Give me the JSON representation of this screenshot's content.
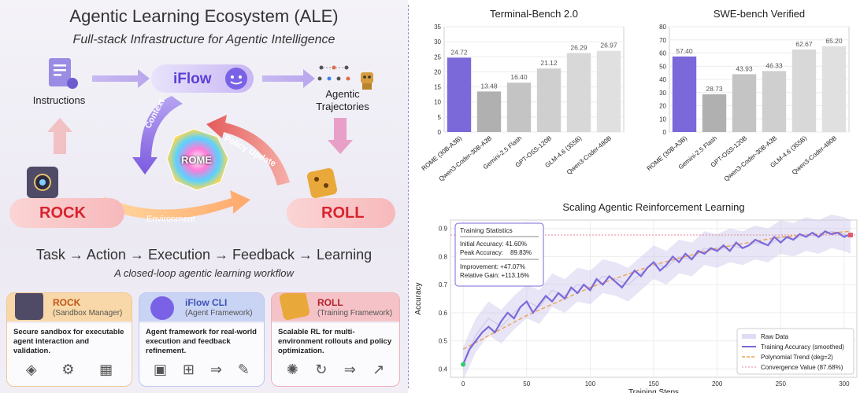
{
  "ale": {
    "title": "Agentic Learning Ecosystem (ALE)",
    "subtitle": "Full-stack Infrastructure for Agentic Intelligence",
    "instructions": "Instructions",
    "iflow": "iFlow",
    "agentic_trajectories": "Agentic\nTrajectories",
    "context": "Context",
    "policy_update": "Policy Update",
    "rome": "ROME",
    "rock": "ROCK",
    "roll": "ROLL",
    "environment": "Environment",
    "workflow": "Task → Action → Execution → Feedback → Learning",
    "workflow_caption": "A closed-loop agentic learning workflow",
    "cards": [
      {
        "name": "ROCK",
        "sub": "(Sandbox Manager)",
        "desc": "Secure sandbox for executable agent interaction and validation.",
        "head_color": "#f6c98a",
        "text_color": "#c0571c"
      },
      {
        "name": "iFlow CLI",
        "sub": "(Agent Framework)",
        "desc": "Agent framework for real-world execution and feedback refinement.",
        "head_color": "#b7c5ef",
        "text_color": "#3e52b8"
      },
      {
        "name": "ROLL",
        "sub": "(Training Framework)",
        "desc": "Scalable RL for multi-environment rollouts and policy optimization.",
        "head_color": "#f3b3b9",
        "text_color": "#b2222f"
      }
    ]
  },
  "chart_data": [
    {
      "type": "bar",
      "title": "Terminal-Bench 2.0",
      "categories": [
        "ROME (30B-A3B)",
        "Qwen3-Coder-30B-A3B",
        "Gemini-2.5 Flash",
        "GPT-OSS-120B",
        "GLM-4.6 (355B)",
        "Qwen3-Coder-480B"
      ],
      "values": [
        24.72,
        13.48,
        16.4,
        21.12,
        26.29,
        26.97
      ],
      "labels": [
        "24.72",
        "13.48",
        "16.40",
        "21.12",
        "26.29",
        "26.97"
      ],
      "ylim": [
        0,
        35
      ],
      "yticks": [
        0,
        5,
        10,
        15,
        20,
        25,
        30,
        35
      ],
      "colors": [
        "#7b68d9",
        "#b0b0b0",
        "#c4c4c4",
        "#cfcfcf",
        "#d8d8d8",
        "#e0e0e0"
      ],
      "highlight_label_color": "#7b68d9"
    },
    {
      "type": "bar",
      "title": "SWE-bench Verified",
      "categories": [
        "ROME (30B-A3B)",
        "Gemini-2.5 Flash",
        "GPT-OSS-120B",
        "Qwen3-Coder-30B-A3B",
        "GLM-4.6 (355B)",
        "Qwen3-Coder-480B"
      ],
      "values": [
        57.4,
        28.73,
        43.93,
        46.33,
        62.67,
        65.2
      ],
      "labels": [
        "57.40",
        "28.73",
        "43.93",
        "46.33",
        "62.67",
        "65.20"
      ],
      "ylim": [
        0,
        80
      ],
      "yticks": [
        0,
        10,
        20,
        30,
        40,
        50,
        60,
        70,
        80
      ],
      "colors": [
        "#7b68d9",
        "#b0b0b0",
        "#c4c4c4",
        "#cfcfcf",
        "#d8d8d8",
        "#e0e0e0"
      ],
      "highlight_label_color": "#7b68d9"
    },
    {
      "type": "line",
      "title": "Scaling Agentic Reinforcement Learning",
      "xlabel": "Training Steps",
      "ylabel": "Accuracy",
      "xlim": [
        -10,
        310
      ],
      "ylim": [
        0.37,
        0.93
      ],
      "xticks": [
        0,
        50,
        100,
        150,
        200,
        250,
        300
      ],
      "yticks": [
        0.4,
        0.5,
        0.6,
        0.7,
        0.8,
        0.9
      ],
      "grid": true,
      "legend_position": "bottom-right",
      "series": [
        {
          "name": "Raw Data",
          "color": "#c9c5ea",
          "x": [
            0,
            10,
            20,
            30,
            40,
            50,
            60,
            70,
            80,
            90,
            100,
            110,
            120,
            130,
            140,
            150,
            160,
            170,
            180,
            190,
            200,
            210,
            220,
            230,
            240,
            250,
            260,
            270,
            280,
            290,
            300,
            305
          ],
          "y": [
            0.42,
            0.52,
            0.58,
            0.55,
            0.6,
            0.64,
            0.62,
            0.68,
            0.66,
            0.7,
            0.69,
            0.73,
            0.72,
            0.7,
            0.74,
            0.78,
            0.76,
            0.8,
            0.79,
            0.83,
            0.82,
            0.84,
            0.83,
            0.85,
            0.84,
            0.87,
            0.86,
            0.88,
            0.87,
            0.89,
            0.88,
            0.87
          ]
        },
        {
          "name": "Training Accuracy (smoothed)",
          "color": "#7b68d9",
          "x": [
            0,
            5,
            10,
            15,
            20,
            25,
            30,
            35,
            40,
            45,
            50,
            55,
            60,
            65,
            70,
            75,
            80,
            85,
            90,
            95,
            100,
            105,
            110,
            115,
            120,
            125,
            130,
            135,
            140,
            145,
            150,
            155,
            160,
            165,
            170,
            175,
            180,
            185,
            190,
            195,
            200,
            205,
            210,
            215,
            220,
            225,
            230,
            235,
            240,
            245,
            250,
            255,
            260,
            265,
            270,
            275,
            280,
            285,
            290,
            295,
            300,
            305
          ],
          "y": [
            0.416,
            0.47,
            0.5,
            0.53,
            0.55,
            0.53,
            0.57,
            0.6,
            0.58,
            0.62,
            0.64,
            0.6,
            0.63,
            0.66,
            0.64,
            0.67,
            0.65,
            0.69,
            0.67,
            0.7,
            0.68,
            0.72,
            0.7,
            0.73,
            0.71,
            0.69,
            0.72,
            0.75,
            0.73,
            0.76,
            0.78,
            0.75,
            0.77,
            0.8,
            0.78,
            0.81,
            0.79,
            0.82,
            0.81,
            0.83,
            0.82,
            0.84,
            0.82,
            0.85,
            0.83,
            0.84,
            0.86,
            0.85,
            0.84,
            0.87,
            0.85,
            0.87,
            0.86,
            0.88,
            0.87,
            0.885,
            0.87,
            0.89,
            0.88,
            0.885,
            0.87,
            0.88
          ]
        },
        {
          "name": "Polynomial Trend (deg=2)",
          "color": "#f0a050",
          "x": [
            0,
            50,
            100,
            150,
            200,
            250,
            305
          ],
          "y": [
            0.47,
            0.59,
            0.69,
            0.77,
            0.83,
            0.87,
            0.89
          ]
        },
        {
          "name": "Convergence Value (87.68%)",
          "color": "#e38a94",
          "x": [
            -10,
            310
          ],
          "y": [
            0.8768,
            0.8768
          ]
        }
      ],
      "stats": {
        "title": "Training Statistics",
        "initial": "Initial Accuracy: 41.60%",
        "peak": "Peak Accuracy:    89.83%",
        "improvement": "Improvement: +47.07%",
        "gain": "Relative Gain: +113.16%"
      }
    }
  ]
}
